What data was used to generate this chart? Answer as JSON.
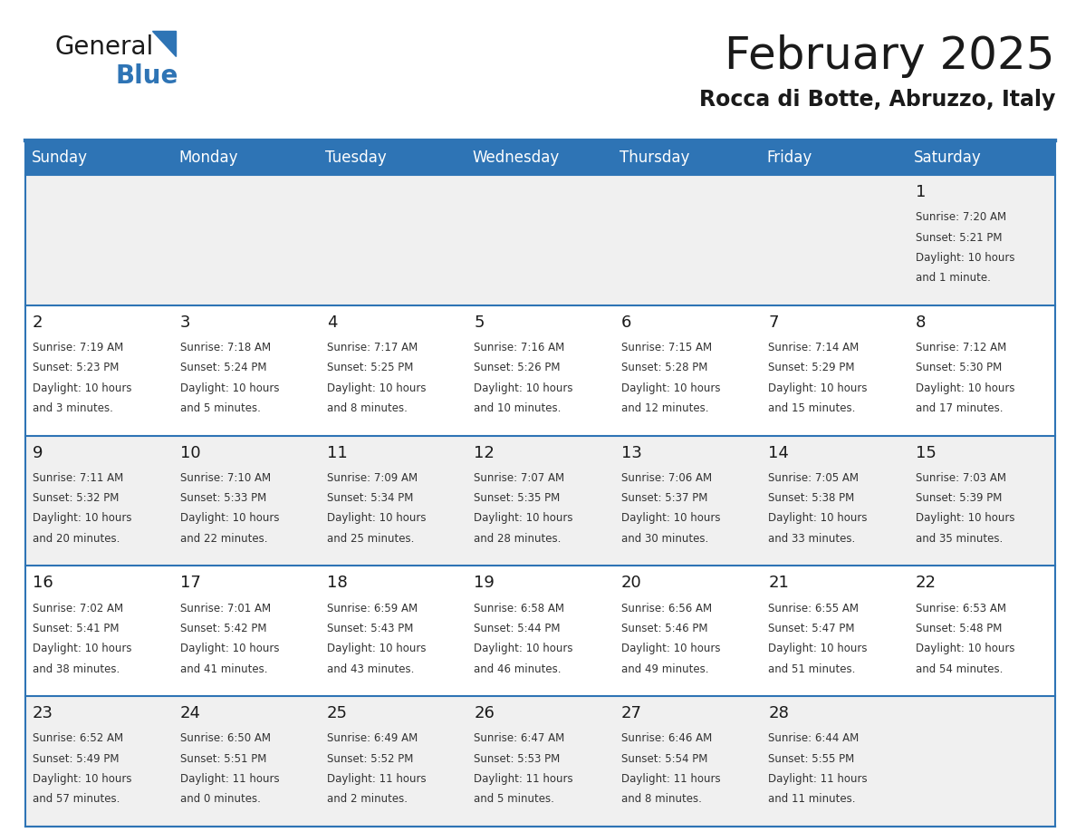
{
  "title": "February 2025",
  "subtitle": "Rocca di Botte, Abruzzo, Italy",
  "header_bg": "#2E74B5",
  "header_text_color": "#FFFFFF",
  "cell_bg_light": "#F0F0F0",
  "cell_bg_white": "#FFFFFF",
  "text_color": "#333333",
  "day_num_color": "#1a1a1a",
  "day_headers": [
    "Sunday",
    "Monday",
    "Tuesday",
    "Wednesday",
    "Thursday",
    "Friday",
    "Saturday"
  ],
  "days_data": [
    {
      "day": 1,
      "col": 6,
      "row": 0,
      "sunrise": "7:20 AM",
      "sunset": "5:21 PM",
      "daylight": "10 hours and 1 minute."
    },
    {
      "day": 2,
      "col": 0,
      "row": 1,
      "sunrise": "7:19 AM",
      "sunset": "5:23 PM",
      "daylight": "10 hours and 3 minutes."
    },
    {
      "day": 3,
      "col": 1,
      "row": 1,
      "sunrise": "7:18 AM",
      "sunset": "5:24 PM",
      "daylight": "10 hours and 5 minutes."
    },
    {
      "day": 4,
      "col": 2,
      "row": 1,
      "sunrise": "7:17 AM",
      "sunset": "5:25 PM",
      "daylight": "10 hours and 8 minutes."
    },
    {
      "day": 5,
      "col": 3,
      "row": 1,
      "sunrise": "7:16 AM",
      "sunset": "5:26 PM",
      "daylight": "10 hours and 10 minutes."
    },
    {
      "day": 6,
      "col": 4,
      "row": 1,
      "sunrise": "7:15 AM",
      "sunset": "5:28 PM",
      "daylight": "10 hours and 12 minutes."
    },
    {
      "day": 7,
      "col": 5,
      "row": 1,
      "sunrise": "7:14 AM",
      "sunset": "5:29 PM",
      "daylight": "10 hours and 15 minutes."
    },
    {
      "day": 8,
      "col": 6,
      "row": 1,
      "sunrise": "7:12 AM",
      "sunset": "5:30 PM",
      "daylight": "10 hours and 17 minutes."
    },
    {
      "day": 9,
      "col": 0,
      "row": 2,
      "sunrise": "7:11 AM",
      "sunset": "5:32 PM",
      "daylight": "10 hours and 20 minutes."
    },
    {
      "day": 10,
      "col": 1,
      "row": 2,
      "sunrise": "7:10 AM",
      "sunset": "5:33 PM",
      "daylight": "10 hours and 22 minutes."
    },
    {
      "day": 11,
      "col": 2,
      "row": 2,
      "sunrise": "7:09 AM",
      "sunset": "5:34 PM",
      "daylight": "10 hours and 25 minutes."
    },
    {
      "day": 12,
      "col": 3,
      "row": 2,
      "sunrise": "7:07 AM",
      "sunset": "5:35 PM",
      "daylight": "10 hours and 28 minutes."
    },
    {
      "day": 13,
      "col": 4,
      "row": 2,
      "sunrise": "7:06 AM",
      "sunset": "5:37 PM",
      "daylight": "10 hours and 30 minutes."
    },
    {
      "day": 14,
      "col": 5,
      "row": 2,
      "sunrise": "7:05 AM",
      "sunset": "5:38 PM",
      "daylight": "10 hours and 33 minutes."
    },
    {
      "day": 15,
      "col": 6,
      "row": 2,
      "sunrise": "7:03 AM",
      "sunset": "5:39 PM",
      "daylight": "10 hours and 35 minutes."
    },
    {
      "day": 16,
      "col": 0,
      "row": 3,
      "sunrise": "7:02 AM",
      "sunset": "5:41 PM",
      "daylight": "10 hours and 38 minutes."
    },
    {
      "day": 17,
      "col": 1,
      "row": 3,
      "sunrise": "7:01 AM",
      "sunset": "5:42 PM",
      "daylight": "10 hours and 41 minutes."
    },
    {
      "day": 18,
      "col": 2,
      "row": 3,
      "sunrise": "6:59 AM",
      "sunset": "5:43 PM",
      "daylight": "10 hours and 43 minutes."
    },
    {
      "day": 19,
      "col": 3,
      "row": 3,
      "sunrise": "6:58 AM",
      "sunset": "5:44 PM",
      "daylight": "10 hours and 46 minutes."
    },
    {
      "day": 20,
      "col": 4,
      "row": 3,
      "sunrise": "6:56 AM",
      "sunset": "5:46 PM",
      "daylight": "10 hours and 49 minutes."
    },
    {
      "day": 21,
      "col": 5,
      "row": 3,
      "sunrise": "6:55 AM",
      "sunset": "5:47 PM",
      "daylight": "10 hours and 51 minutes."
    },
    {
      "day": 22,
      "col": 6,
      "row": 3,
      "sunrise": "6:53 AM",
      "sunset": "5:48 PM",
      "daylight": "10 hours and 54 minutes."
    },
    {
      "day": 23,
      "col": 0,
      "row": 4,
      "sunrise": "6:52 AM",
      "sunset": "5:49 PM",
      "daylight": "10 hours and 57 minutes."
    },
    {
      "day": 24,
      "col": 1,
      "row": 4,
      "sunrise": "6:50 AM",
      "sunset": "5:51 PM",
      "daylight": "11 hours and 0 minutes."
    },
    {
      "day": 25,
      "col": 2,
      "row": 4,
      "sunrise": "6:49 AM",
      "sunset": "5:52 PM",
      "daylight": "11 hours and 2 minutes."
    },
    {
      "day": 26,
      "col": 3,
      "row": 4,
      "sunrise": "6:47 AM",
      "sunset": "5:53 PM",
      "daylight": "11 hours and 5 minutes."
    },
    {
      "day": 27,
      "col": 4,
      "row": 4,
      "sunrise": "6:46 AM",
      "sunset": "5:54 PM",
      "daylight": "11 hours and 8 minutes."
    },
    {
      "day": 28,
      "col": 5,
      "row": 4,
      "sunrise": "6:44 AM",
      "sunset": "5:55 PM",
      "daylight": "11 hours and 11 minutes."
    }
  ],
  "num_rows": 5,
  "num_cols": 7,
  "divider_color": "#2E74B5",
  "logo_color_general": "#1a1a1a",
  "logo_color_blue": "#2E74B5",
  "logo_triangle_color": "#2E74B5"
}
